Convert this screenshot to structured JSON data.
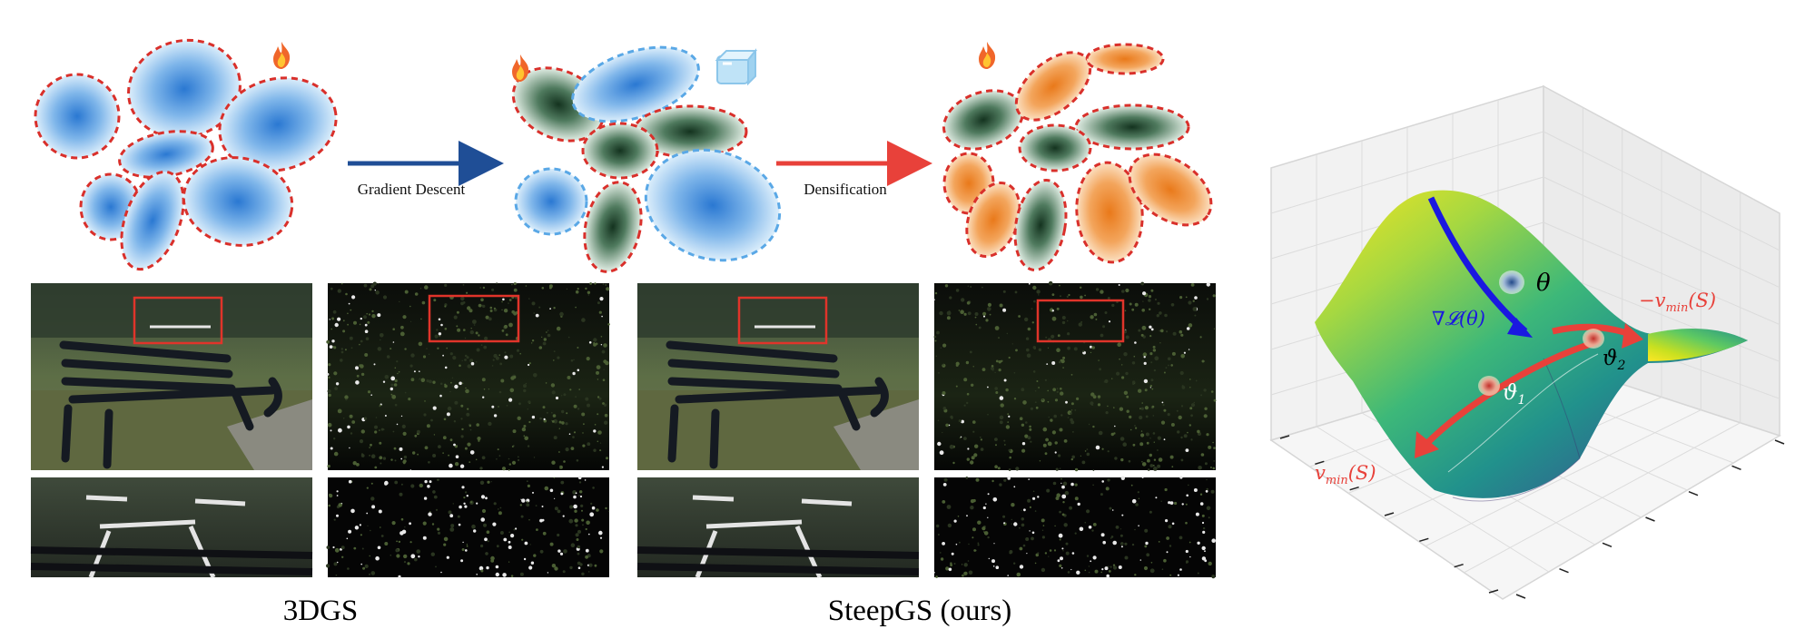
{
  "top_row": {
    "arrow1_label": "Gradient Descent",
    "arrow2_label": "Densification"
  },
  "bottom_labels": {
    "left": "3DGS",
    "right": "SteepGS (ours)"
  },
  "icons": {
    "fire": "fire-icon",
    "ice": "ice-cube-icon"
  },
  "colors": {
    "blue_arrow": "#1f4e96",
    "red_arrow": "#e8413a",
    "dashed_red": "#d9302b",
    "dashed_blue": "#5aa8e6",
    "gaussian_blue": "#2f7fd6",
    "gaussian_green": "#1f4a33",
    "gaussian_orange": "#ef8a2c",
    "surface_high": "#f5e21c",
    "surface_low": "#3b1d6e",
    "gradient_arrow": "#1a18e0"
  },
  "saddle_plot": {
    "theta": "θ",
    "grad": "∇𝓛(θ)",
    "neg_vmin": "−v",
    "neg_vmin_sub": "min",
    "neg_vmin_arg": "(S)",
    "vmin": "v",
    "vmin_sub": "min",
    "vmin_arg": "(S)",
    "vartheta1": "ϑ",
    "vartheta1_sub": "1",
    "vartheta2": "ϑ",
    "vartheta2_sub": "2"
  }
}
